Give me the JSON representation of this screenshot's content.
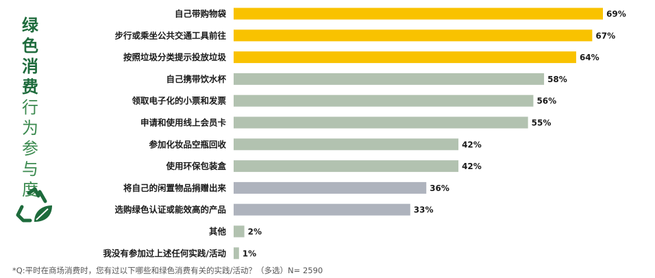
{
  "side_title": [
    "绿",
    "色",
    "消",
    "费",
    "行",
    "为",
    "参",
    "与",
    "度"
  ],
  "icon": "recycle-leaf-icon",
  "colors": {
    "gold": "#F9C200",
    "green": "#B2C2B0",
    "gray": "#AEB3BD",
    "title_green": "#1E6B3C"
  },
  "chart_data": {
    "type": "bar",
    "orientation": "horizontal",
    "categories": [
      "自己带购物袋",
      "步行或乘坐公共交通工具前往",
      "按照垃圾分类提示投放垃圾",
      "自己携带饮水杯",
      "领取电子化的小票和发票",
      "申请和使用线上会员卡",
      "参加化妆品空瓶回收",
      "使用环保包装盒",
      "将自己的闲置物品捐赠出来",
      "选购绿色认证或能效高的产品",
      "其他",
      "我没有参加过上述任何实践/活动"
    ],
    "values": [
      69,
      67,
      64,
      58,
      56,
      55,
      42,
      42,
      36,
      33,
      2,
      1
    ],
    "value_labels": [
      "69%",
      "67%",
      "64%",
      "58%",
      "56%",
      "55%",
      "42%",
      "42%",
      "36%",
      "33%",
      "2%",
      "1%"
    ],
    "bar_colors": [
      "#F9C200",
      "#F9C200",
      "#F9C200",
      "#B2C2B0",
      "#B2C2B0",
      "#B2C2B0",
      "#B2C2B0",
      "#B2C2B0",
      "#AEB3BD",
      "#AEB3BD",
      "#B2C2B0",
      "#B2C2B0"
    ],
    "xlim": [
      0,
      69
    ],
    "grid": false,
    "legend": "none"
  },
  "footnote": "*Q:平时在商场消费时，您有过以下哪些和绿色消费有关的实践/活动？（多选）N= 2590"
}
